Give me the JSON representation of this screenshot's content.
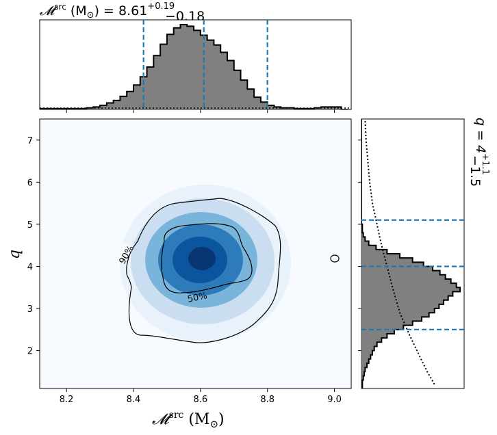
{
  "chart_data": {
    "type": "corner",
    "top_title": {
      "symbol": "𝓜",
      "sup": "src",
      "unit": " (M",
      "sun": "⊙",
      "eq": ") = 8.61",
      "plus": "+0.19",
      "minus": "−0.18"
    },
    "right_title": {
      "prefix": "q = 4",
      "plus": "+1.1",
      "minus": "−1.5"
    },
    "xlabel": {
      "symbol": "𝓜",
      "sup": "src",
      "unit": " (M",
      "sun": "⊙",
      "close": ")"
    },
    "ylabel": "q",
    "x_ticks": [
      "8.2",
      "8.4",
      "8.6",
      "8.8",
      "9.0"
    ],
    "y_ticks": [
      "2",
      "3",
      "4",
      "5",
      "6",
      "7"
    ],
    "xlim": [
      8.12,
      9.05
    ],
    "ylim": [
      1.1,
      7.5
    ],
    "contour_labels": [
      "90%",
      "50%"
    ],
    "marginal_x": {
      "bin_start": 8.12,
      "bin_width": 0.02,
      "values": [
        1,
        1,
        1,
        1,
        1,
        1,
        1,
        2,
        3,
        5,
        8,
        11,
        16,
        22,
        30,
        40,
        52,
        66,
        80,
        92,
        100,
        104,
        102,
        97,
        91,
        85,
        79,
        70,
        60,
        48,
        36,
        25,
        15,
        9,
        5,
        3,
        2,
        2,
        1,
        1,
        1,
        2,
        3,
        3,
        3,
        0
      ],
      "dashed": [
        8.43,
        8.61,
        8.8
      ]
    },
    "marginal_y": {
      "bin_start": 1.1,
      "bin_width": 0.1,
      "values": [
        1,
        1,
        2,
        3,
        4,
        6,
        8,
        10,
        12,
        14,
        17,
        22,
        28,
        36,
        46,
        56,
        66,
        74,
        80,
        85,
        90,
        95,
        100,
        108,
        104,
        98,
        92,
        86,
        78,
        68,
        56,
        42,
        28,
        16,
        8,
        4,
        2,
        1,
        1,
        0,
        0,
        0,
        0,
        0,
        0,
        0,
        0,
        0,
        0,
        0,
        0,
        0,
        0,
        0,
        0,
        0,
        0,
        0,
        0,
        0,
        0,
        0,
        0,
        0
      ],
      "dashed": [
        2.5,
        4.0,
        5.1
      ],
      "prior_dotted": [
        [
          1.2,
          80
        ],
        [
          1.5,
          72
        ],
        [
          1.9,
          63
        ],
        [
          2.4,
          52
        ],
        [
          2.9,
          42
        ],
        [
          3.5,
          34
        ],
        [
          4.0,
          28
        ],
        [
          4.5,
          22
        ],
        [
          5.0,
          17
        ],
        [
          5.5,
          12
        ],
        [
          6.0,
          9
        ],
        [
          6.5,
          7
        ],
        [
          7.0,
          5
        ],
        [
          7.5,
          4
        ]
      ]
    }
  },
  "colors": {
    "accent": "#1f77b4",
    "fill": "#808080",
    "heat_low": "#f7fbff",
    "heat_high": "#08306b"
  }
}
